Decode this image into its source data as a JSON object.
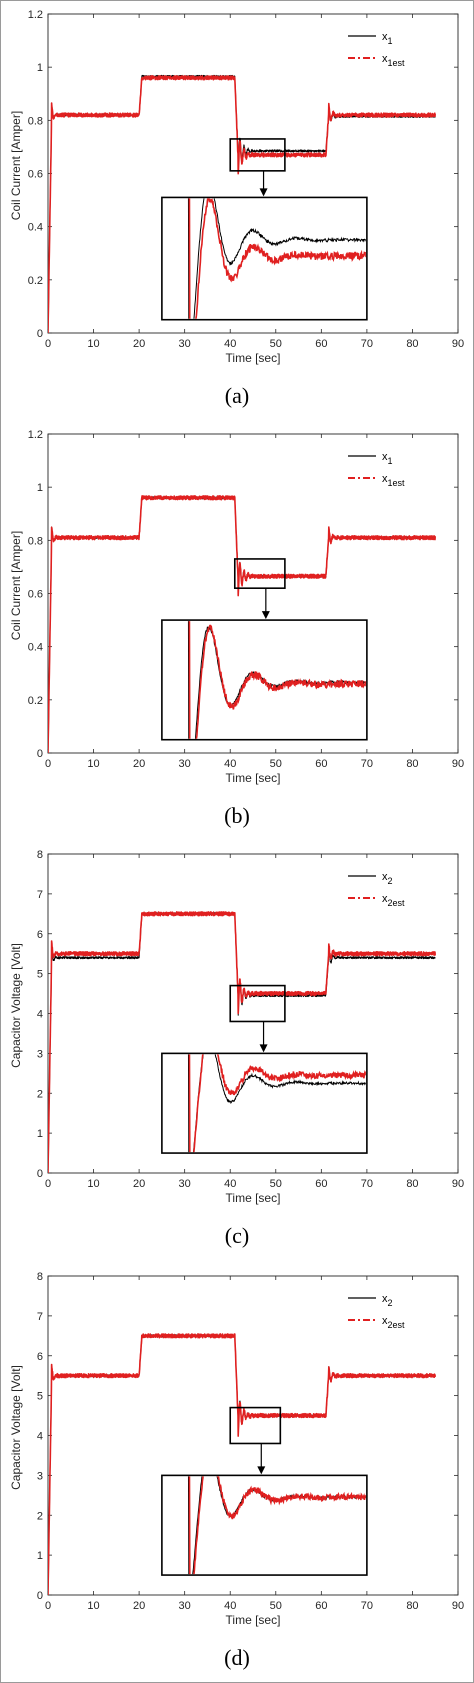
{
  "colors": {
    "x_measured": "#000000",
    "x_estimated": "#e02020",
    "axis": "#262626"
  },
  "chart_data": [
    {
      "type": "line",
      "caption": "(a)",
      "xlabel": "Time [sec]",
      "ylabel": "Coil Current [Amper]",
      "xlim": [
        0,
        90
      ],
      "ylim": [
        0,
        1.2
      ],
      "xticks": [
        "0",
        "10",
        "20",
        "30",
        "40",
        "50",
        "60",
        "70",
        "80",
        "90"
      ],
      "yticks": [
        "0",
        "0.2",
        "0.4",
        "0.6",
        "0.8",
        "1",
        "1.2"
      ],
      "grid": false,
      "legend_placement": "top-right",
      "legend": [
        {
          "base": "x",
          "sub": "1",
          "style": "solid"
        },
        {
          "base": "x",
          "sub": "1est",
          "style": "dash-dot"
        }
      ],
      "levels": [
        0.82,
        0.965,
        0.685,
        0.815
      ],
      "est_levels": [
        0.82,
        0.96,
        0.67,
        0.82
      ],
      "switch_times": [
        0,
        20,
        41,
        61,
        85
      ],
      "zoom_box": {
        "x": [
          40,
          52
        ],
        "y": [
          0.61,
          0.73
        ]
      },
      "inset": {
        "x": [
          25,
          70
        ],
        "y": [
          0.05,
          0.51
        ],
        "measured_level": 0.35,
        "estimated_level": 0.29
      }
    },
    {
      "type": "line",
      "caption": "(b)",
      "xlabel": "Time [sec]",
      "ylabel": "Coil Current [Amper]",
      "xlim": [
        0,
        90
      ],
      "ylim": [
        0,
        1.2
      ],
      "xticks": [
        "0",
        "10",
        "20",
        "30",
        "40",
        "50",
        "60",
        "70",
        "80",
        "90"
      ],
      "yticks": [
        "0",
        "0.2",
        "0.4",
        "0.6",
        "0.8",
        "1",
        "1.2"
      ],
      "grid": false,
      "legend_placement": "top-right",
      "legend": [
        {
          "base": "x",
          "sub": "1",
          "style": "solid"
        },
        {
          "base": "x",
          "sub": "1est",
          "style": "dash-dot"
        }
      ],
      "levels": [
        0.81,
        0.96,
        0.665,
        0.81
      ],
      "est_levels": [
        0.81,
        0.96,
        0.665,
        0.81
      ],
      "switch_times": [
        0,
        20,
        41,
        61,
        85
      ],
      "zoom_box": {
        "x": [
          41,
          52
        ],
        "y": [
          0.62,
          0.73
        ]
      },
      "inset": {
        "x": [
          25,
          70
        ],
        "y": [
          0.05,
          0.5
        ],
        "measured_level": 0.265,
        "estimated_level": 0.26
      }
    },
    {
      "type": "line",
      "caption": "(c)",
      "xlabel": "Time [sec]",
      "ylabel": "Capacitor Voltage [Volt]",
      "xlim": [
        0,
        90
      ],
      "ylim": [
        0,
        8
      ],
      "xticks": [
        "0",
        "10",
        "20",
        "30",
        "40",
        "50",
        "60",
        "70",
        "80",
        "90"
      ],
      "yticks": [
        "0",
        "1",
        "2",
        "3",
        "4",
        "5",
        "6",
        "7",
        "8"
      ],
      "grid": false,
      "legend_placement": "top-right",
      "legend": [
        {
          "base": "x",
          "sub": "2",
          "style": "solid"
        },
        {
          "base": "x",
          "sub": "2est",
          "style": "dash-dot"
        }
      ],
      "levels": [
        5.4,
        6.5,
        4.45,
        5.4
      ],
      "est_levels": [
        5.5,
        6.5,
        4.5,
        5.5
      ],
      "switch_times": [
        0,
        20,
        41,
        61,
        85
      ],
      "zoom_box": {
        "x": [
          40,
          52
        ],
        "y": [
          3.8,
          4.7
        ]
      },
      "inset": {
        "x": [
          25,
          70
        ],
        "y": [
          0.5,
          3.0
        ],
        "measured_level": 2.25,
        "estimated_level": 2.45
      }
    },
    {
      "type": "line",
      "caption": "(d)",
      "xlabel": "Time [sec]",
      "ylabel": "Capacitor Voltage [Volt]",
      "xlim": [
        0,
        90
      ],
      "ylim": [
        0,
        8
      ],
      "xticks": [
        "0",
        "10",
        "20",
        "30",
        "40",
        "50",
        "60",
        "70",
        "80",
        "90"
      ],
      "yticks": [
        "0",
        "1",
        "2",
        "3",
        "4",
        "5",
        "6",
        "7",
        "8"
      ],
      "grid": false,
      "legend_placement": "top-right",
      "legend": [
        {
          "base": "x",
          "sub": "2",
          "style": "solid"
        },
        {
          "base": "x",
          "sub": "2est",
          "style": "dash-dot"
        }
      ],
      "levels": [
        5.5,
        6.5,
        4.5,
        5.5
      ],
      "est_levels": [
        5.5,
        6.5,
        4.5,
        5.5
      ],
      "switch_times": [
        0,
        20,
        41,
        61,
        85
      ],
      "zoom_box": {
        "x": [
          40,
          51
        ],
        "y": [
          3.8,
          4.7
        ]
      },
      "inset": {
        "x": [
          25,
          70
        ],
        "y": [
          0.5,
          3.0
        ],
        "measured_level": 2.45,
        "estimated_level": 2.45
      }
    }
  ]
}
